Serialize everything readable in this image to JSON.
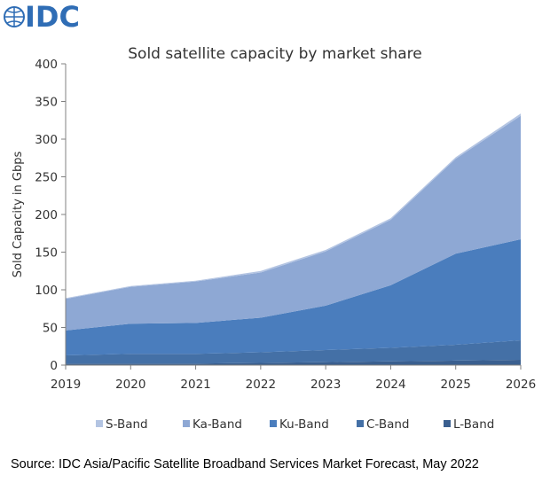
{
  "logo": {
    "text": "IDC"
  },
  "source": "Source: IDC Asia/Pacific Satellite Broadband Services Market Forecast, May 2022",
  "chart_data": {
    "type": "area",
    "stacked": true,
    "title": "Sold satellite capacity by market share",
    "xlabel": "",
    "ylabel": "Sold Capacity in Gbps",
    "categories": [
      "2019",
      "2020",
      "2021",
      "2022",
      "2023",
      "2024",
      "2025",
      "2026"
    ],
    "ylim": [
      0,
      400
    ],
    "yticks": [
      0,
      50,
      100,
      150,
      200,
      250,
      300,
      350,
      400
    ],
    "legend_position": "bottom",
    "grid": false,
    "series": [
      {
        "name": "L-Band",
        "color": "#3a5f8f",
        "values": [
          2,
          2,
          2,
          3,
          4,
          5,
          6,
          7
        ]
      },
      {
        "name": "C-Band",
        "color": "#4470a6",
        "values": [
          11,
          13,
          13,
          14,
          16,
          18,
          21,
          26
        ]
      },
      {
        "name": "Ku-Band",
        "color": "#4a7dbd",
        "values": [
          33,
          40,
          41,
          46,
          59,
          83,
          121,
          134
        ]
      },
      {
        "name": "Ka-Band",
        "color": "#8ea8d4",
        "values": [
          42,
          49,
          55,
          60,
          72,
          87,
          126,
          164
        ]
      },
      {
        "name": "S-Band",
        "color": "#b3c4e2",
        "values": [
          1,
          1,
          1,
          2,
          2,
          2,
          2,
          3
        ]
      }
    ]
  }
}
